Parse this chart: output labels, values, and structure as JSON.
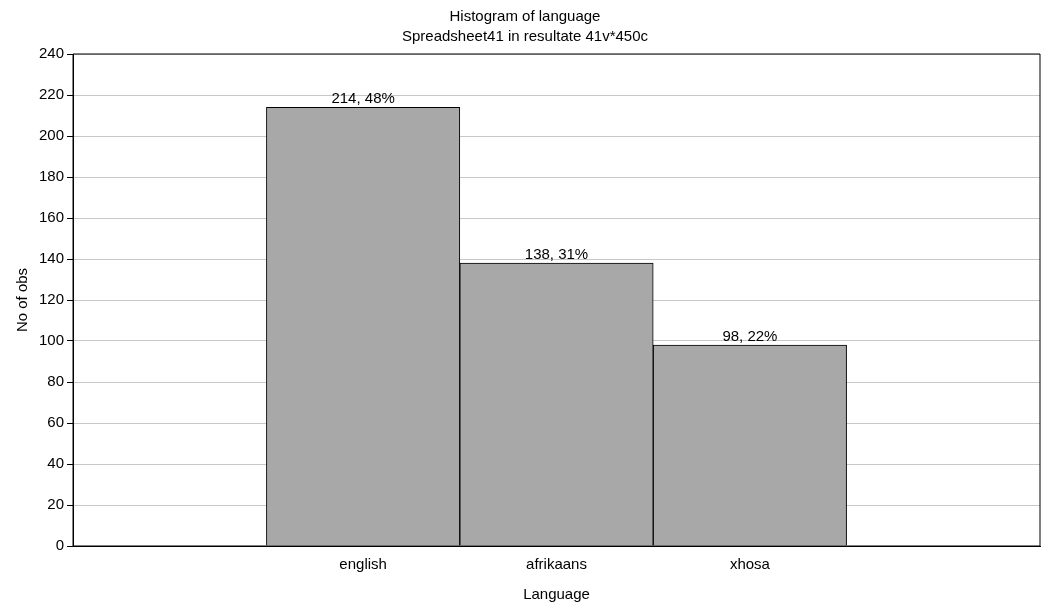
{
  "chart_data": {
    "type": "bar",
    "title": "Histogram of language",
    "subtitle": "Spreadsheet41 in resultate 41v*450c",
    "xlabel": "Language",
    "ylabel": "No of obs",
    "categories": [
      "english",
      "afrikaans",
      "xhosa"
    ],
    "values": [
      214,
      138,
      98
    ],
    "value_labels": [
      "214, 48%",
      "138, 31%",
      "98, 22%"
    ],
    "color": "#a8a8a8",
    "ylim": [
      0,
      240
    ],
    "yticks": [
      0,
      20,
      40,
      60,
      80,
      100,
      120,
      140,
      160,
      180,
      200,
      220,
      240
    ],
    "grid": "y",
    "legend": false
  }
}
